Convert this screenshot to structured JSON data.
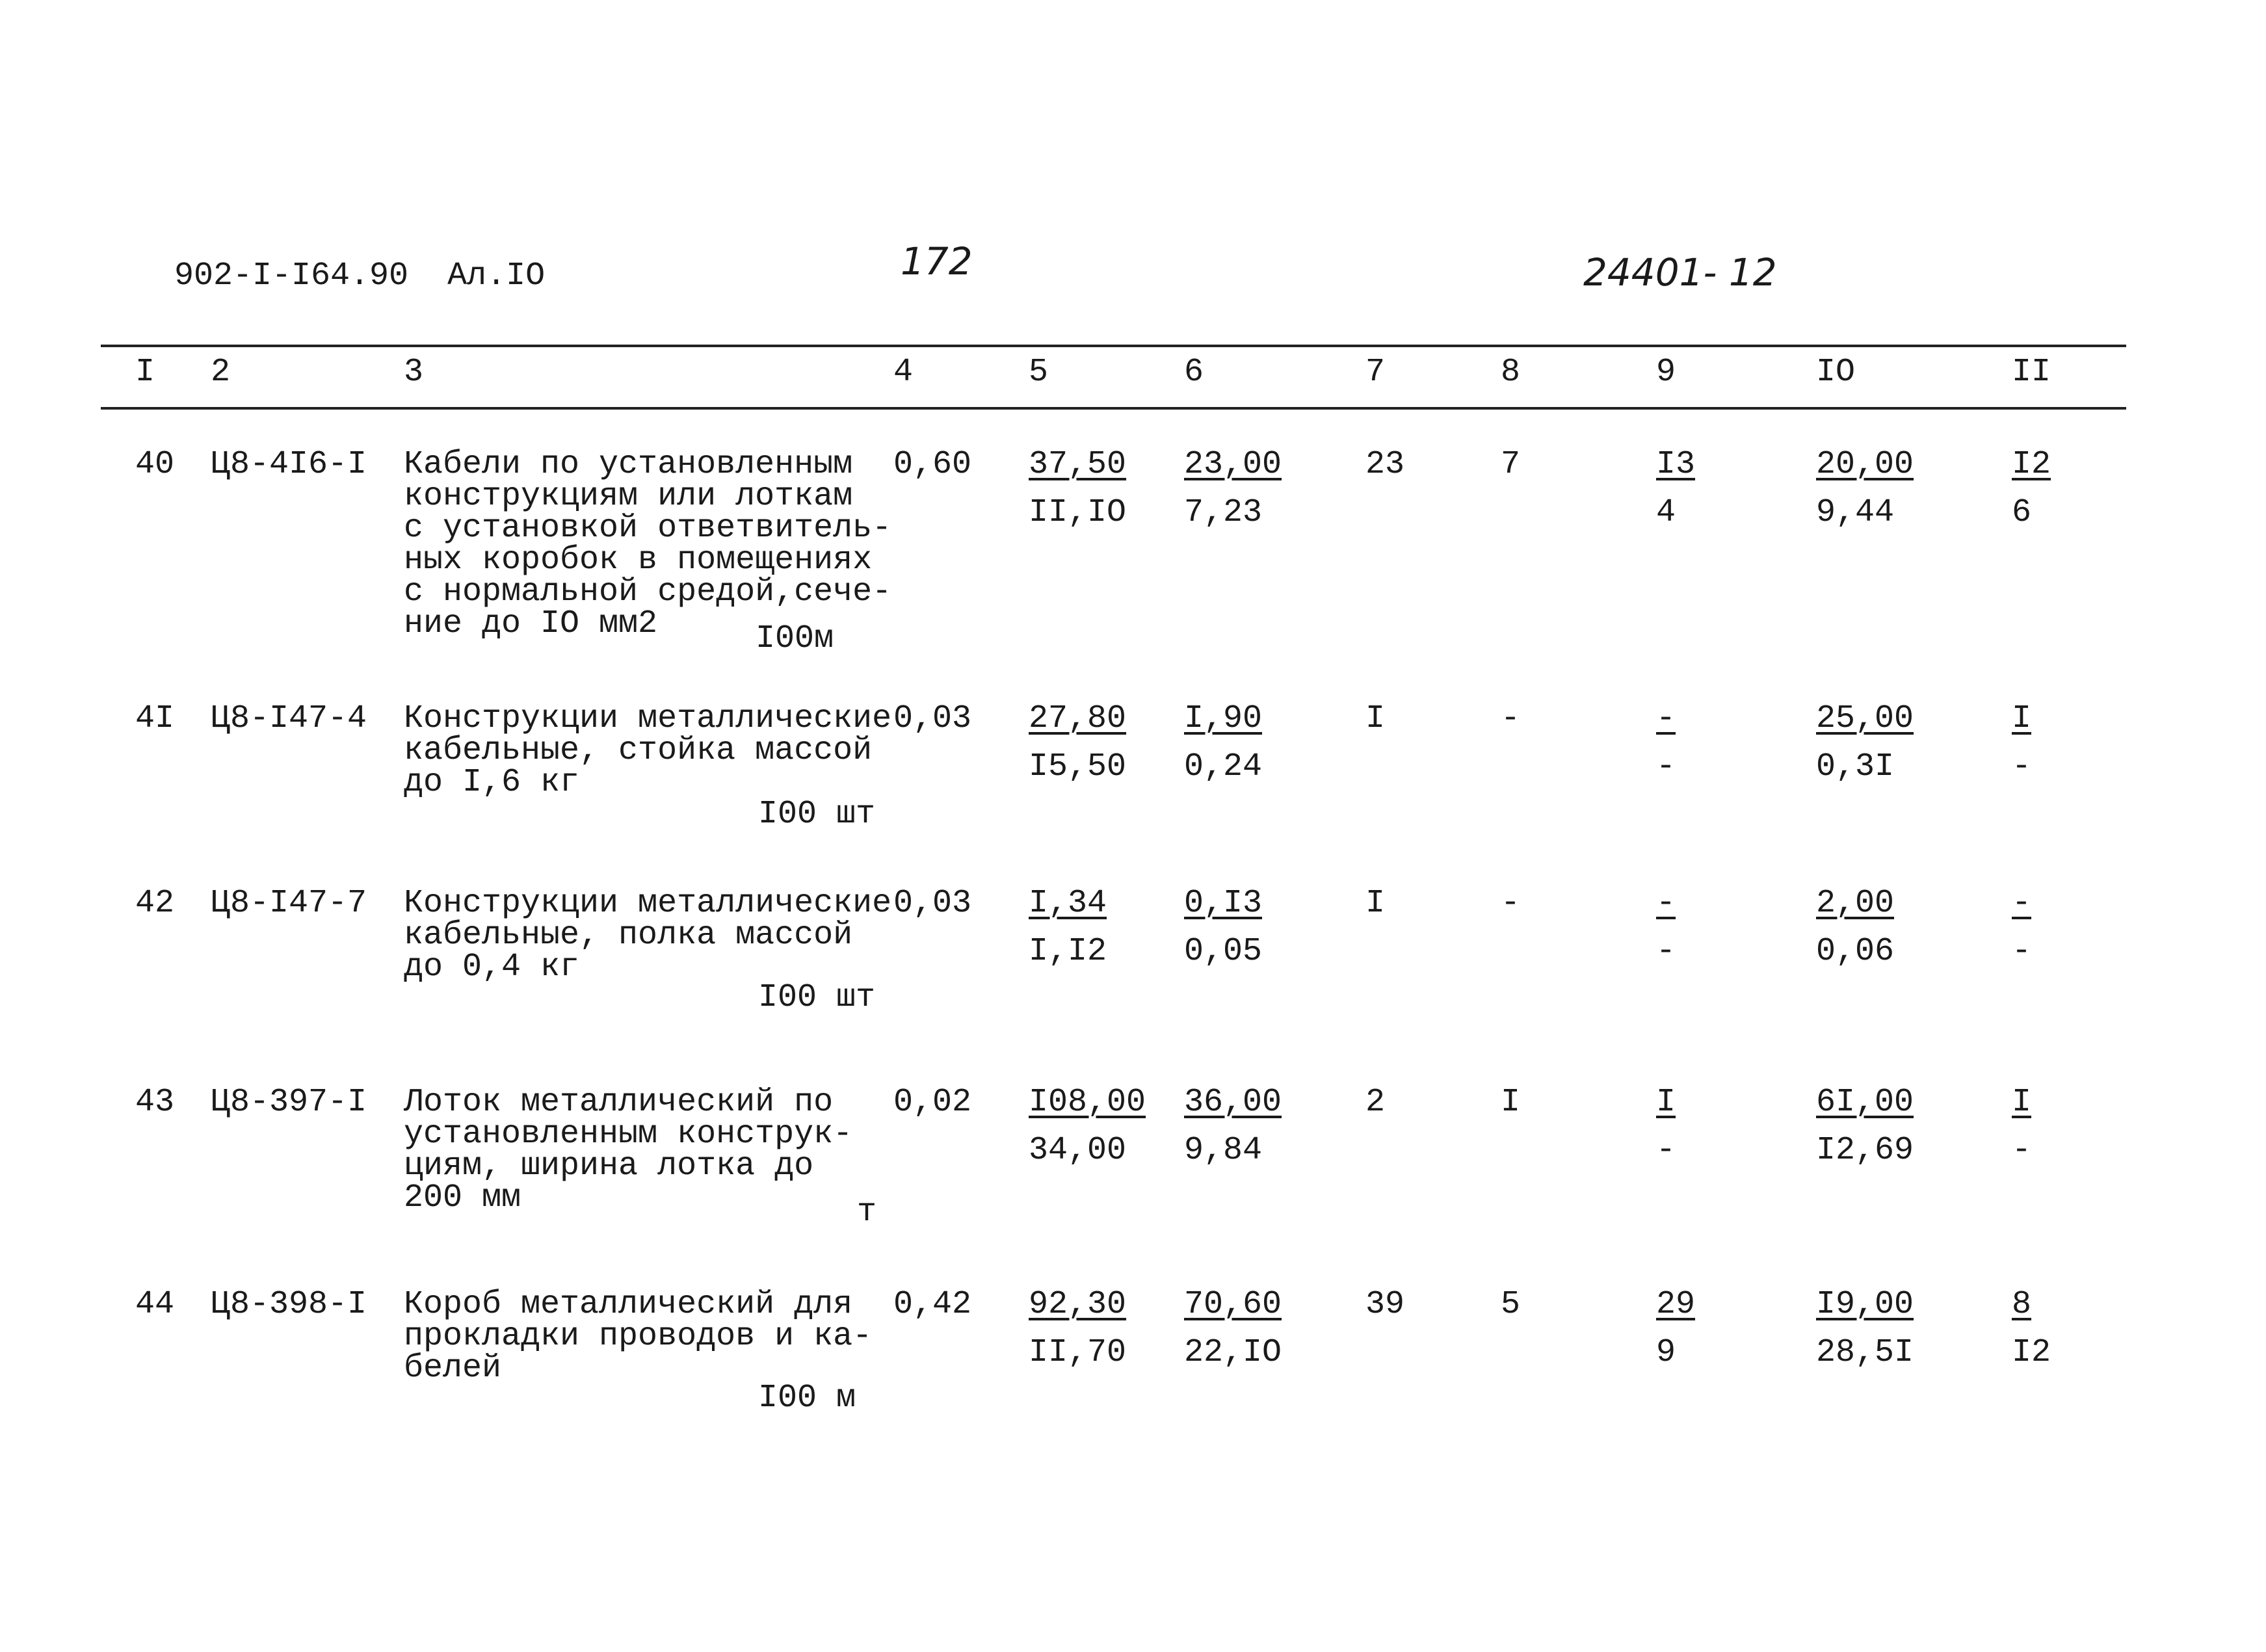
{
  "header": {
    "doc_code": "902-I-I64.90  Ал.IO",
    "page_number": "172",
    "archive_number": "24401- 12"
  },
  "columns": [
    "I",
    "2",
    "3",
    "4",
    "5",
    "6",
    "7",
    "8",
    "9",
    "IO",
    "II"
  ],
  "rows": [
    {
      "n": "40",
      "code": "Ц8-4I6-I",
      "desc": [
        "Кабели по установленным",
        "конструкциям или лоткам",
        "с установкой ответвитель-",
        "ных коробок в помещениях",
        "с нормальной средой,сече-",
        "ние до IO мм2"
      ],
      "unit": "I00м",
      "qty": "0,60",
      "c5": [
        "37,50",
        "II,IO"
      ],
      "c6": [
        "23,00",
        "7,23"
      ],
      "c7": "23",
      "c8": "7",
      "c9": [
        "I3",
        "4"
      ],
      "c10": [
        "20,00",
        "9,44"
      ],
      "c11": [
        "I2",
        "6"
      ]
    },
    {
      "n": "4I",
      "code": "Ц8-I47-4",
      "desc": [
        "Конструкции металлические",
        "кабельные, стойка массой",
        "до I,6 кг"
      ],
      "unit": "I00 шт",
      "qty": "0,03",
      "c5": [
        "27,80",
        "I5,50"
      ],
      "c6": [
        "I,90",
        "0,24"
      ],
      "c7": "I",
      "c8": "-",
      "c9": [
        "-",
        "-"
      ],
      "c10": [
        "25,00",
        "0,3I"
      ],
      "c11": [
        "I",
        "-"
      ]
    },
    {
      "n": "42",
      "code": "Ц8-I47-7",
      "desc": [
        "Конструкции металлические",
        "кабельные, полка массой",
        "до 0,4 кг"
      ],
      "unit": "I00 шт",
      "qty": "0,03",
      "c5": [
        "I,34",
        "I,I2"
      ],
      "c6": [
        "0,I3",
        "0,05"
      ],
      "c7": "I",
      "c8": "-",
      "c9": [
        "-",
        "-"
      ],
      "c10": [
        "2,00",
        "0,06"
      ],
      "c11": [
        "-",
        "-"
      ]
    },
    {
      "n": "43",
      "code": "Ц8-397-I",
      "desc": [
        "Лоток металлический по",
        "установленным конструк-",
        "циям, ширина лотка до",
        "200 мм"
      ],
      "unit": "т",
      "qty": "0,02",
      "c5": [
        "I08,00",
        "34,00"
      ],
      "c6": [
        "36,00",
        "9,84"
      ],
      "c7": "2",
      "c8": "I",
      "c9": [
        "I",
        "-"
      ],
      "c10": [
        "6I,00",
        "I2,69"
      ],
      "c11": [
        "I",
        "-"
      ]
    },
    {
      "n": "44",
      "code": "Ц8-398-I",
      "desc": [
        "Короб металлический для",
        "прокладки проводов и ка-",
        "белей"
      ],
      "unit": "I00 м",
      "qty": "0,42",
      "c5": [
        "92,30",
        "II,70"
      ],
      "c6": [
        "70,60",
        "22,IO"
      ],
      "c7": "39",
      "c8": "5",
      "c9": [
        "29",
        "9"
      ],
      "c10": [
        "I9,00",
        "28,5I"
      ],
      "c11": [
        "8",
        "I2"
      ]
    }
  ]
}
